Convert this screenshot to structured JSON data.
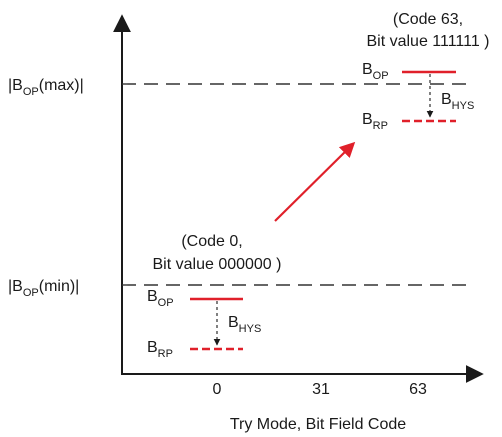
{
  "y_axis_labels": {
    "max": {
      "prefix": "|B",
      "sub": "OP",
      "suffix": "(max)|"
    },
    "min": {
      "prefix": "|B",
      "sub": "OP",
      "suffix": "(min)|"
    }
  },
  "x_axis": {
    "ticks": [
      "0",
      "31",
      "63"
    ],
    "title": "Try Mode, Bit Field Code"
  },
  "code63": {
    "line1": "(Code 63,",
    "line2": "Bit value 111111 )",
    "bop": {
      "base": "B",
      "sub": "OP"
    },
    "bhys": {
      "base": "B",
      "sub": "HYS"
    },
    "brp": {
      "base": "B",
      "sub": "RP"
    }
  },
  "code0": {
    "line1": "(Code 0,",
    "line2": "Bit value 000000 )",
    "bop": {
      "base": "B",
      "sub": "OP"
    },
    "bhys": {
      "base": "B",
      "sub": "HYS"
    },
    "brp": {
      "base": "B",
      "sub": "RP"
    }
  },
  "colors": {
    "axis": "#1a1a1a",
    "threshold_red": "#e0202a",
    "dash_gray": "#333333"
  }
}
